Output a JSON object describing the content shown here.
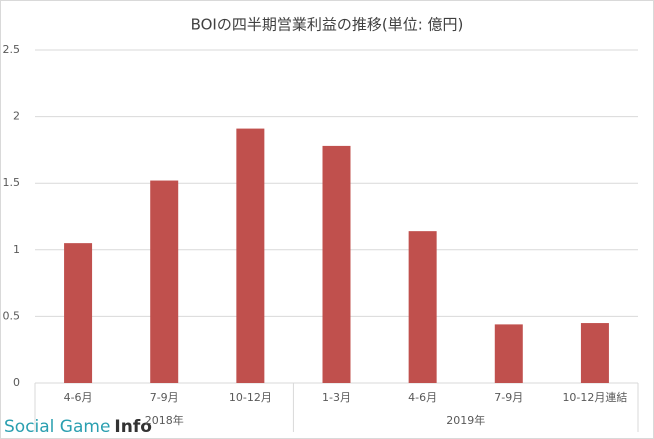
{
  "chart_data": {
    "type": "bar",
    "title": "BOIの四半期営業利益の推移(単位: 億円)",
    "categories": [
      "4-6月",
      "7-9月",
      "10-12月",
      "1-3月",
      "4-6月",
      "7-9月",
      "10-12月連結"
    ],
    "values": [
      1.05,
      1.52,
      1.91,
      1.78,
      1.14,
      0.44,
      0.45
    ],
    "color": "#c0504d",
    "ylim": [
      0,
      2.5
    ],
    "yticks": [
      0,
      0.5,
      1,
      1.5,
      2,
      2.5
    ],
    "grid": true,
    "x_groups": [
      {
        "label": "2018年",
        "count": 3
      },
      {
        "label": "2019年",
        "count": 4
      }
    ]
  },
  "watermark": [
    "Social Game",
    "Info"
  ]
}
